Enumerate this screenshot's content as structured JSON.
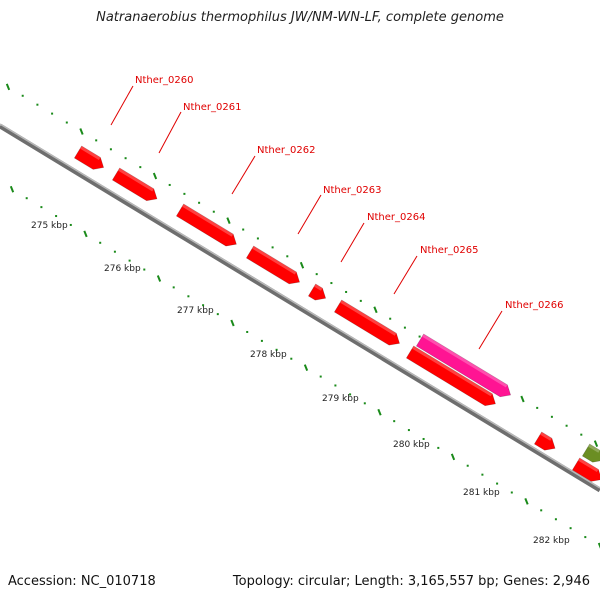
{
  "title": "Natranaerobius thermophilus JW/NM-WN-LF, complete genome",
  "footer": {
    "accession": "Accession: NC_010718",
    "topology": "Topology: circular; Length: 3,165,557 bp; Genes: 2,946"
  },
  "colors": {
    "cds": "#ff0000",
    "highlight": "#ff1493",
    "other": "#6b8e23",
    "backbone": "#909090",
    "tick": "#1a8a1a",
    "label": "#e00000"
  },
  "gene_labels": [
    "Nther_0260",
    "Nther_0261",
    "Nther_0262",
    "Nther_0263",
    "Nther_0264",
    "Nther_0265",
    "Nther_0266"
  ],
  "scale_labels": [
    "275 kbp",
    "276 kbp",
    "277 kbp",
    "278 kbp",
    "279 kbp",
    "280 kbp",
    "281 kbp",
    "282 kbp"
  ]
}
